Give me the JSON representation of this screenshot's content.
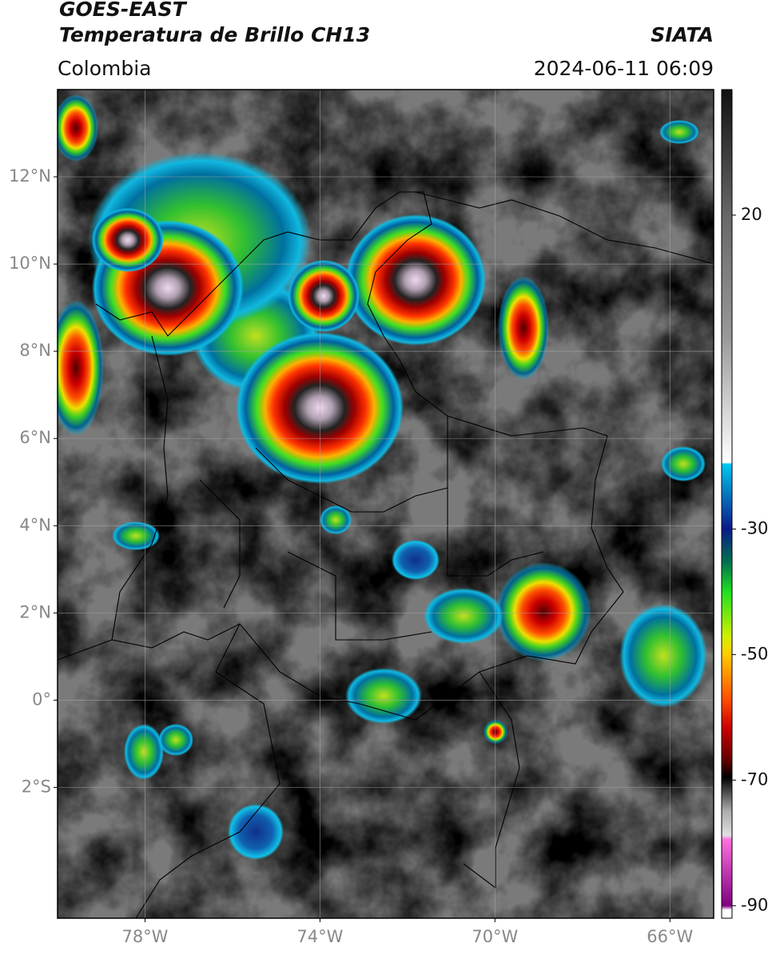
{
  "header": {
    "title": "GOES-EAST",
    "subtitle": "Temperatura de Brillo CH13",
    "brand": "SIATA",
    "region": "Colombia",
    "datetime": "2024-06-11 06:09"
  },
  "map": {
    "xlim": [
      -80,
      -65
    ],
    "ylim": [
      -5,
      14
    ],
    "xticks": [
      {
        "value": -78,
        "label": "78°W"
      },
      {
        "value": -74,
        "label": "74°W"
      },
      {
        "value": -70,
        "label": "70°W"
      },
      {
        "value": -66,
        "label": "66°W"
      }
    ],
    "yticks": [
      {
        "value": 12,
        "label": "12°N"
      },
      {
        "value": 10,
        "label": "10°N"
      },
      {
        "value": 8,
        "label": "8°N"
      },
      {
        "value": 6,
        "label": "6°N"
      },
      {
        "value": 4,
        "label": "4°N"
      },
      {
        "value": 2,
        "label": "2°N"
      },
      {
        "value": 0,
        "label": "0°"
      },
      {
        "value": -2,
        "label": "2°S"
      }
    ],
    "grid": true
  },
  "colorbar": {
    "lim": [
      -92,
      40
    ],
    "ticks": [
      20,
      -30,
      -50,
      -70,
      -90
    ]
  }
}
